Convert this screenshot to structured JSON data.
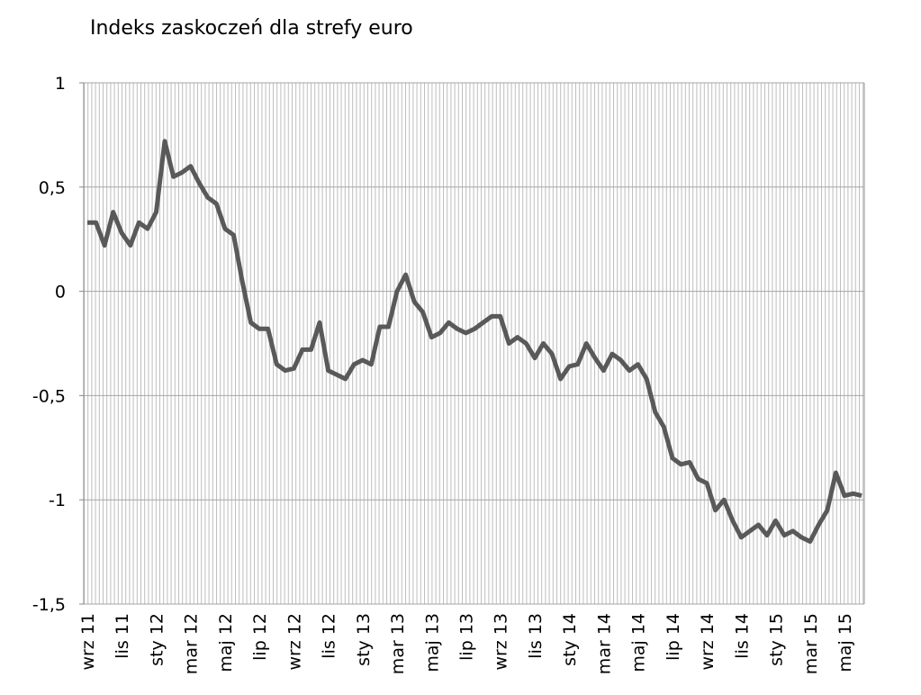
{
  "chart_data": {
    "type": "line",
    "title": "Indeks zaskoczeń dla strefy euro",
    "categories": [
      "wrz 11",
      null,
      null,
      null,
      "lis 11",
      null,
      null,
      null,
      "sty 12",
      null,
      null,
      null,
      "mar 12",
      null,
      null,
      null,
      "maj 12",
      null,
      null,
      null,
      "lip 12",
      null,
      null,
      null,
      "wrz 12",
      null,
      null,
      null,
      "lis 12",
      null,
      null,
      null,
      "sty 13",
      null,
      null,
      null,
      "mar 13",
      null,
      null,
      null,
      "maj 13",
      null,
      null,
      null,
      "lip 13",
      null,
      null,
      null,
      "wrz 13",
      null,
      null,
      null,
      "lis 13",
      null,
      null,
      null,
      "sty 14",
      null,
      null,
      null,
      "mar 14",
      null,
      null,
      null,
      "maj 14",
      null,
      null,
      null,
      "lip 14",
      null,
      null,
      null,
      "wrz 14",
      null,
      null,
      null,
      "lis 14",
      null,
      null,
      null,
      "sty 15",
      null,
      null,
      null,
      "mar 15",
      null,
      null,
      null,
      "maj 15",
      null,
      null
    ],
    "values": [
      0.33,
      0.33,
      0.22,
      0.38,
      0.28,
      0.22,
      0.33,
      0.3,
      0.38,
      0.72,
      0.55,
      0.57,
      0.6,
      0.52,
      0.45,
      0.42,
      0.3,
      0.27,
      0.05,
      -0.15,
      -0.18,
      -0.18,
      -0.35,
      -0.38,
      -0.37,
      -0.28,
      -0.28,
      -0.15,
      -0.38,
      -0.4,
      -0.42,
      -0.35,
      -0.33,
      -0.35,
      -0.17,
      -0.17,
      0.0,
      0.08,
      -0.05,
      -0.1,
      -0.22,
      -0.2,
      -0.15,
      -0.18,
      -0.2,
      -0.18,
      -0.15,
      -0.12,
      -0.12,
      -0.25,
      -0.22,
      -0.25,
      -0.32,
      -0.25,
      -0.3,
      -0.42,
      -0.36,
      -0.35,
      -0.25,
      -0.32,
      -0.38,
      -0.3,
      -0.33,
      -0.38,
      -0.35,
      -0.42,
      -0.58,
      -0.65,
      -0.8,
      -0.83,
      -0.82,
      -0.9,
      -0.92,
      -1.05,
      -1.0,
      -1.1,
      -1.18,
      -1.15,
      -1.12,
      -1.17,
      -1.1,
      -1.17,
      -1.15,
      -1.18,
      -1.2,
      -1.12,
      -1.05,
      -0.87,
      -0.98,
      -0.97,
      -0.98
    ],
    "color": "#595959",
    "ylim": [
      -1.5,
      1
    ],
    "yticks": [
      {
        "value": -1.5,
        "label": "-1,5"
      },
      -1,
      {
        "value": -0.5,
        "label": "-0,5"
      },
      0,
      {
        "value": 0.5,
        "label": "0,5"
      },
      1
    ],
    "grid": true
  }
}
